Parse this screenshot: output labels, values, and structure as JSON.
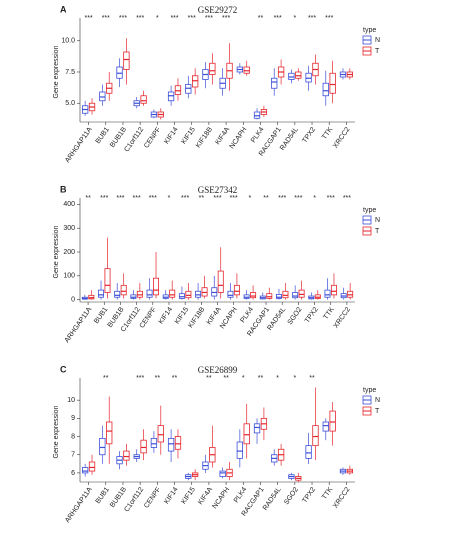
{
  "chart_data": [
    {
      "type": "box",
      "label": "A",
      "title": "GSE29272",
      "y_label": "Gene expression",
      "legend_title": "type",
      "categories": [
        "ARHGAP11A",
        "BUB1",
        "BUB1B",
        "C1orf112",
        "CENPF",
        "KIF14",
        "KIF15",
        "KIF18B",
        "KIF4A",
        "NCAPH",
        "PLK4",
        "RACGAP1",
        "RAD54L",
        "TPX2",
        "TTK",
        "XRCC2"
      ],
      "annotations": [
        "***",
        "***",
        "***",
        "***",
        "*",
        "***",
        "***",
        "***",
        "***",
        null,
        "**",
        "***",
        "*",
        "***",
        "***",
        null
      ],
      "ylim": [
        3.5,
        11.5
      ],
      "yticks": [
        {
          "value": 5,
          "label": "5.0"
        },
        {
          "value": 7.5,
          "label": "7.5"
        },
        {
          "value": 10,
          "label": "10.0"
        }
      ],
      "series": [
        {
          "name": "N",
          "color": "#3b4fd8",
          "values": [
            [
              4.0,
              4.2,
              4.5,
              4.8,
              5.2
            ],
            [
              4.8,
              5.2,
              5.5,
              5.9,
              6.5
            ],
            [
              6.3,
              7.0,
              7.4,
              7.9,
              8.6
            ],
            [
              4.6,
              4.8,
              5.0,
              5.2,
              5.5
            ],
            [
              3.8,
              3.9,
              4.1,
              4.3,
              4.5
            ],
            [
              4.8,
              5.2,
              5.6,
              5.9,
              6.4
            ],
            [
              5.4,
              5.8,
              6.2,
              6.5,
              7.2
            ],
            [
              6.2,
              6.9,
              7.3,
              7.7,
              8.3
            ],
            [
              5.6,
              6.2,
              6.6,
              7.0,
              7.8
            ],
            [
              7.3,
              7.5,
              7.7,
              7.9,
              8.2
            ],
            [
              3.7,
              3.8,
              4.0,
              4.3,
              4.6
            ],
            [
              5.6,
              6.2,
              6.7,
              7.0,
              7.8
            ],
            [
              6.6,
              6.9,
              7.1,
              7.4,
              7.7
            ],
            [
              6.0,
              6.7,
              7.0,
              7.4,
              8.0
            ],
            [
              4.8,
              5.6,
              6.0,
              6.6,
              7.6
            ],
            [
              6.9,
              7.1,
              7.3,
              7.5,
              7.8
            ]
          ]
        },
        {
          "name": "T",
          "color": "#e4262c",
          "values": [
            [
              4.1,
              4.4,
              4.7,
              5.0,
              5.4
            ],
            [
              5.2,
              5.8,
              6.2,
              6.6,
              7.5
            ],
            [
              6.5,
              7.7,
              8.5,
              9.1,
              10.2
            ],
            [
              4.8,
              5.0,
              5.2,
              5.6,
              6.0
            ],
            [
              3.7,
              3.9,
              4.1,
              4.3,
              4.6
            ],
            [
              5.2,
              5.7,
              6.0,
              6.4,
              7.0
            ],
            [
              5.7,
              6.3,
              6.8,
              7.2,
              7.8
            ],
            [
              6.5,
              7.3,
              7.6,
              8.2,
              9.0
            ],
            [
              6.0,
              7.0,
              7.6,
              8.2,
              9.8
            ],
            [
              7.2,
              7.4,
              7.6,
              7.9,
              8.4
            ],
            [
              3.9,
              4.1,
              4.3,
              4.5,
              4.8
            ],
            [
              6.5,
              7.1,
              7.5,
              7.9,
              8.5
            ],
            [
              6.8,
              7.0,
              7.2,
              7.5,
              7.8
            ],
            [
              6.5,
              7.2,
              7.7,
              8.2,
              8.9
            ],
            [
              5.0,
              5.8,
              6.5,
              7.4,
              8.4
            ],
            [
              6.9,
              7.1,
              7.3,
              7.5,
              7.8
            ]
          ]
        }
      ]
    },
    {
      "type": "box",
      "label": "B",
      "title": "GSE27342",
      "y_label": "Gene expression",
      "legend_title": "type",
      "categories": [
        "ARHGAP11A",
        "BUB1",
        "BUB1B",
        "C1orf112",
        "CENPF",
        "KIF14",
        "KIF15",
        "KIF18B",
        "KIF4A",
        "NCAPH",
        "PLK4",
        "RACGAP1",
        "RAD54L",
        "SGO2",
        "TPX2",
        "TTK",
        "XRCC2"
      ],
      "annotations": [
        "**",
        "***",
        "***",
        "***",
        "***",
        "*",
        "***",
        "**",
        "***",
        "***",
        "*",
        "**",
        "***",
        "***",
        "*",
        "***",
        "***"
      ],
      "ylim": [
        -10,
        410
      ],
      "yticks": [
        0,
        100,
        200,
        300,
        400
      ],
      "series": [
        {
          "name": "N",
          "color": "#3b4fd8",
          "values": [
            [
              0,
              2,
              5,
              10,
              20
            ],
            [
              0,
              10,
              20,
              40,
              80
            ],
            [
              0,
              10,
              18,
              35,
              70
            ],
            [
              0,
              5,
              10,
              20,
              40
            ],
            [
              0,
              10,
              20,
              40,
              90
            ],
            [
              0,
              5,
              10,
              20,
              40
            ],
            [
              0,
              5,
              12,
              25,
              55
            ],
            [
              0,
              10,
              20,
              35,
              70
            ],
            [
              0,
              15,
              30,
              50,
              100
            ],
            [
              0,
              10,
              18,
              35,
              70
            ],
            [
              0,
              5,
              10,
              20,
              40
            ],
            [
              0,
              3,
              8,
              15,
              30
            ],
            [
              0,
              5,
              10,
              22,
              45
            ],
            [
              0,
              8,
              15,
              30,
              60
            ],
            [
              0,
              3,
              8,
              15,
              30
            ],
            [
              0,
              10,
              20,
              40,
              90
            ],
            [
              0,
              8,
              15,
              25,
              50
            ]
          ]
        },
        {
          "name": "T",
          "color": "#e4262c",
          "values": [
            [
              0,
              3,
              8,
              18,
              40
            ],
            [
              5,
              30,
              60,
              130,
              260
            ],
            [
              5,
              20,
              35,
              60,
              110
            ],
            [
              0,
              10,
              20,
              35,
              70
            ],
            [
              5,
              20,
              40,
              90,
              200
            ],
            [
              0,
              10,
              20,
              40,
              80
            ],
            [
              0,
              8,
              18,
              35,
              70
            ],
            [
              5,
              15,
              30,
              50,
              100
            ],
            [
              5,
              30,
              60,
              120,
              220
            ],
            [
              5,
              20,
              35,
              60,
              110
            ],
            [
              0,
              8,
              15,
              30,
              60
            ],
            [
              0,
              5,
              12,
              25,
              50
            ],
            [
              0,
              8,
              18,
              35,
              70
            ],
            [
              0,
              10,
              22,
              40,
              80
            ],
            [
              0,
              5,
              10,
              20,
              40
            ],
            [
              5,
              20,
              35,
              60,
              110
            ],
            [
              0,
              10,
              20,
              35,
              70
            ]
          ]
        }
      ]
    },
    {
      "type": "box",
      "label": "C",
      "title": "GSE26899",
      "y_label": "Gene expression",
      "legend_title": "type",
      "categories": [
        "ARHGAP11A",
        "BUB1",
        "BUB1B",
        "C1orf112",
        "CENPF",
        "KIF14",
        "KIF15",
        "KIF4A",
        "NCAPH",
        "PLK4",
        "RACGAP1",
        "RAD54L",
        "SGO2",
        "TPX2",
        "TTK",
        "XRCC2"
      ],
      "annotations": [
        null,
        "**",
        null,
        "***",
        "**",
        "**",
        null,
        "**",
        "**",
        "*",
        "**",
        "*",
        "*",
        "**",
        null,
        null
      ],
      "ylim": [
        5.5,
        11
      ],
      "yticks": [
        6,
        7,
        8,
        9,
        10
      ],
      "series": [
        {
          "name": "N",
          "color": "#3b4fd8",
          "values": [
            [
              5.8,
              6.0,
              6.1,
              6.3,
              6.5
            ],
            [
              6.5,
              7.0,
              7.4,
              7.9,
              8.6
            ],
            [
              6.2,
              6.5,
              6.7,
              6.9,
              7.2
            ],
            [
              6.6,
              6.8,
              6.9,
              7.0,
              7.3
            ],
            [
              7.1,
              7.4,
              7.6,
              7.9,
              8.3
            ],
            [
              6.6,
              7.2,
              7.6,
              7.9,
              8.4
            ],
            [
              5.6,
              5.7,
              5.8,
              5.9,
              6.0
            ],
            [
              6.0,
              6.2,
              6.4,
              6.6,
              7.0
            ],
            [
              5.7,
              5.8,
              6.0,
              6.1,
              6.3
            ],
            [
              6.3,
              6.8,
              7.2,
              7.7,
              8.4
            ],
            [
              7.6,
              8.2,
              8.5,
              8.7,
              9.0
            ],
            [
              6.4,
              6.6,
              6.8,
              7.0,
              7.3
            ],
            [
              5.6,
              5.7,
              5.8,
              5.9,
              6.0
            ],
            [
              6.5,
              6.8,
              7.1,
              7.5,
              8.2
            ],
            [
              7.8,
              8.3,
              8.6,
              8.8,
              9.0
            ],
            [
              5.9,
              6.0,
              6.1,
              6.2,
              6.3
            ]
          ]
        },
        {
          "name": "T",
          "color": "#e4262c",
          "values": [
            [
              5.9,
              6.1,
              6.3,
              6.6,
              7.0
            ],
            [
              6.5,
              7.6,
              8.3,
              8.8,
              10.2
            ],
            [
              6.4,
              6.7,
              6.9,
              7.2,
              7.6
            ],
            [
              6.7,
              7.1,
              7.4,
              7.8,
              8.4
            ],
            [
              7.0,
              7.7,
              8.1,
              8.6,
              9.7
            ],
            [
              6.8,
              7.3,
              7.6,
              8.0,
              8.4
            ],
            [
              5.6,
              5.8,
              5.9,
              6.0,
              6.2
            ],
            [
              6.3,
              6.6,
              7.0,
              7.4,
              8.6
            ],
            [
              5.6,
              5.8,
              6.0,
              6.2,
              6.6
            ],
            [
              6.8,
              7.6,
              8.1,
              8.7,
              9.8
            ],
            [
              7.8,
              8.4,
              8.7,
              9.0,
              9.6
            ],
            [
              6.4,
              6.7,
              7.0,
              7.3,
              7.6
            ],
            [
              5.5,
              5.6,
              5.7,
              5.8,
              6.0
            ],
            [
              6.7,
              7.5,
              8.0,
              8.6,
              10.7
            ],
            [
              7.5,
              8.3,
              8.8,
              9.4,
              9.9
            ],
            [
              5.9,
              6.0,
              6.1,
              6.2,
              6.4
            ]
          ]
        }
      ]
    }
  ]
}
